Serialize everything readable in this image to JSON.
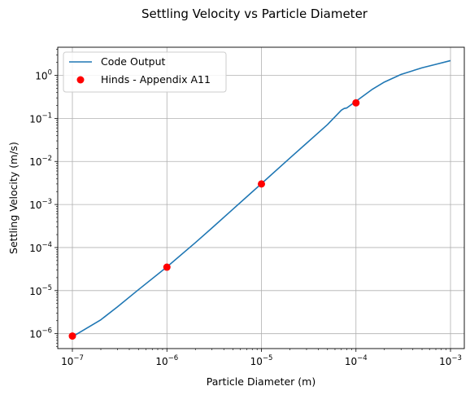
{
  "chart_data": {
    "type": "line",
    "title": "Settling Velocity vs Particle Diameter",
    "xlabel": "Particle Diameter (m)",
    "ylabel": "Settling Velocity (m/s)",
    "xscale": "log",
    "yscale": "log",
    "xlim": [
      7e-08,
      0.0014
    ],
    "ylim": [
      4.5e-07,
      4.5
    ],
    "grid": true,
    "legend_position": "top-left",
    "x_ticks": [
      {
        "value": 1e-07,
        "base": "10",
        "exp": "−7"
      },
      {
        "value": 1e-06,
        "base": "10",
        "exp": "−6"
      },
      {
        "value": 1e-05,
        "base": "10",
        "exp": "−5"
      },
      {
        "value": 0.0001,
        "base": "10",
        "exp": "−4"
      },
      {
        "value": 0.001,
        "base": "10",
        "exp": "−3"
      }
    ],
    "y_ticks": [
      {
        "value": 1e-06,
        "base": "10",
        "exp": "−6"
      },
      {
        "value": 1e-05,
        "base": "10",
        "exp": "−5"
      },
      {
        "value": 0.0001,
        "base": "10",
        "exp": "−4"
      },
      {
        "value": 0.001,
        "base": "10",
        "exp": "−3"
      },
      {
        "value": 0.01,
        "base": "10",
        "exp": "−2"
      },
      {
        "value": 0.1,
        "base": "10",
        "exp": "−1"
      },
      {
        "value": 1,
        "base": "10",
        "exp": "0"
      }
    ],
    "series": [
      {
        "name": "Code Output",
        "kind": "line",
        "color": "#1f77b4",
        "x": [
          1e-07,
          2e-07,
          3e-07,
          5e-07,
          1e-06,
          2e-06,
          3e-06,
          5e-06,
          1e-05,
          2e-05,
          3e-05,
          5e-05,
          7e-05,
          7.5e-05,
          8e-05,
          0.0001,
          0.00015,
          0.0002,
          0.0003,
          0.0005,
          0.0007,
          0.001
        ],
        "y": [
          8.5e-07,
          2.1e-06,
          4.2e-06,
          1.05e-05,
          3.55e-05,
          0.00013,
          0.000285,
          0.00078,
          0.00305,
          0.012,
          0.0265,
          0.072,
          0.155,
          0.17,
          0.175,
          0.25,
          0.48,
          0.7,
          1.05,
          1.5,
          1.8,
          2.2
        ]
      },
      {
        "name": "Hinds - Appendix A11",
        "kind": "scatter",
        "color": "#ff0000",
        "x": [
          1e-07,
          1e-06,
          1e-05,
          0.0001
        ],
        "y": [
          8.8e-07,
          3.5e-05,
          0.003,
          0.23
        ]
      }
    ]
  }
}
